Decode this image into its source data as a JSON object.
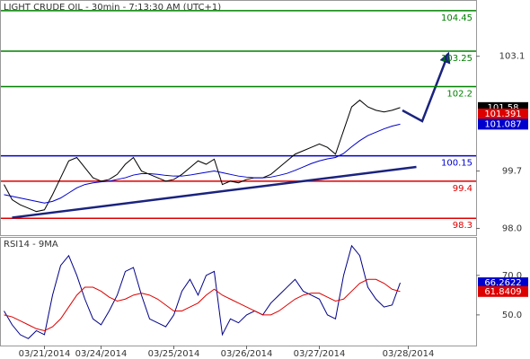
{
  "chart_data": [
    {
      "type": "line",
      "title": "LIGHT CRUDE OIL - 30min - 7:13:30 AM (UTC+1)",
      "categories": [
        null,
        null,
        null,
        null,
        null,
        "03/21/2014",
        null,
        null,
        null,
        null,
        null,
        null,
        "03/24/2014",
        null,
        null,
        null,
        null,
        null,
        null,
        null,
        null,
        "03/25/2014",
        null,
        null,
        null,
        null,
        null,
        null,
        null,
        null,
        "03/26/2014",
        null,
        null,
        null,
        null,
        null,
        null,
        null,
        null,
        "03/27/2014",
        null,
        null,
        null,
        null,
        null,
        null,
        null,
        null,
        null,
        null,
        "03/28/2014"
      ],
      "series": [
        {
          "color": "#000000",
          "values": [
            99.3,
            98.85,
            98.7,
            98.6,
            98.5,
            98.55,
            99.0,
            99.5,
            100.0,
            100.1,
            99.8,
            99.5,
            99.4,
            99.45,
            99.6,
            99.9,
            100.1,
            99.7,
            99.6,
            99.5,
            99.4,
            99.45,
            99.6,
            99.8,
            100.0,
            99.9,
            100.05,
            99.3,
            99.4,
            99.35,
            99.45,
            99.5,
            99.5,
            99.6,
            99.8,
            100.0,
            100.2,
            100.3,
            100.4,
            100.5,
            100.4,
            100.2,
            100.9,
            101.6,
            101.8,
            101.6,
            101.5,
            101.45,
            101.5,
            101.58,
            null
          ]
        },
        {
          "color": "#0000cc",
          "values": [
            99.0,
            98.95,
            98.9,
            98.85,
            98.8,
            98.75,
            98.8,
            98.9,
            99.05,
            99.2,
            99.3,
            99.35,
            99.38,
            99.4,
            99.45,
            99.5,
            99.58,
            99.62,
            99.62,
            99.6,
            99.57,
            99.55,
            99.55,
            99.58,
            99.62,
            99.66,
            99.7,
            99.65,
            99.6,
            99.55,
            99.52,
            99.5,
            99.5,
            99.52,
            99.57,
            99.63,
            99.72,
            99.82,
            99.92,
            100.0,
            100.06,
            100.1,
            100.22,
            100.42,
            100.6,
            100.75,
            100.85,
            100.95,
            101.03,
            101.087,
            null
          ]
        }
      ],
      "levels": [
        {
          "value": 104.45,
          "color": "#008000"
        },
        {
          "value": 103.25,
          "color": "#008000"
        },
        {
          "value": 102.2,
          "color": "#008000"
        },
        {
          "value": 100.15,
          "color": "#0000cc"
        },
        {
          "value": 99.4,
          "color": "#dd0000"
        },
        {
          "value": 98.3,
          "color": "#dd0000"
        }
      ],
      "trendline": {
        "color": "#1a237e",
        "values": [
          98.32,
          99.82
        ]
      },
      "last_values": [
        {
          "value": 101.58,
          "color": "#000000"
        },
        {
          "value": 101.391,
          "color": "#dd0000"
        },
        {
          "value": 101.087,
          "color": "#0000cc"
        }
      ],
      "ylim": [
        97.8,
        104.74
      ],
      "yticks": [
        {
          "value": 98,
          "label": "98.0"
        },
        99.7,
        103.1
      ]
    },
    {
      "type": "line",
      "title": "RSI14 - 9MA",
      "series": [
        {
          "color": "#000088",
          "values": [
            52,
            45,
            40,
            38,
            42,
            40,
            60,
            75,
            80,
            70,
            58,
            48,
            45,
            52,
            60,
            72,
            74,
            60,
            48,
            46,
            44,
            50,
            62,
            68,
            60,
            70,
            72,
            40,
            48,
            46,
            50,
            52,
            50,
            56,
            60,
            64,
            68,
            62,
            60,
            58,
            50,
            48,
            70,
            85,
            80,
            64,
            58,
            54,
            55,
            66.2622,
            null
          ]
        },
        {
          "color": "#dd0000",
          "values": [
            50,
            49,
            47,
            45,
            43,
            42,
            44,
            48,
            54,
            60,
            64,
            64,
            62,
            59,
            57,
            58,
            60,
            61,
            60,
            58,
            55,
            52,
            52,
            54,
            56,
            60,
            63,
            60,
            58,
            56,
            54,
            52,
            50,
            50,
            52,
            55,
            58,
            60,
            61,
            61,
            59,
            57,
            58,
            62,
            66,
            68,
            68,
            66,
            63,
            61.8409,
            null
          ]
        }
      ],
      "last_values": [
        {
          "value": 66.2622,
          "color": "#0000cc"
        },
        {
          "value": 61.8409,
          "color": "#dd0000"
        }
      ],
      "ylim": [
        34.5,
        89
      ],
      "yticks": [
        {
          "value": 50,
          "label": "50.0"
        },
        {
          "value": 70,
          "label": "70.0"
        }
      ]
    }
  ]
}
